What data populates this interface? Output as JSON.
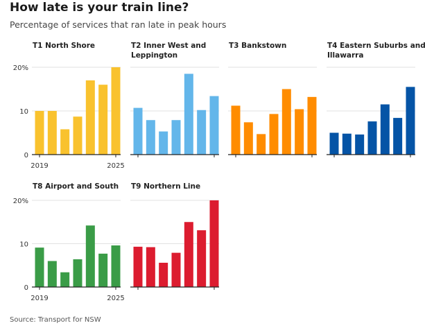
{
  "title": "How late is your train line?",
  "subtitle": "Percentage of services that ran late in peak hours",
  "source": "Source: Transport for NSW",
  "colors": {
    "T1": "#f9c22e",
    "T2": "#63b6ea",
    "T3": "#ff8c00",
    "T4": "#0554a6",
    "T8": "#3a9c47",
    "T9": "#dc1c2f",
    "grid": "#e2e2e2",
    "axis": "#222222"
  },
  "chart_data": [
    {
      "type": "bar",
      "title": "T1 North Shore",
      "color_key": "T1",
      "categories": [
        "2019",
        "2020",
        "2021",
        "2022",
        "2023",
        "2024",
        "2025"
      ],
      "values": [
        10,
        10,
        5.8,
        8.7,
        17,
        16,
        20
      ],
      "ylim": [
        0,
        20
      ],
      "yticks": [
        "0",
        "10",
        "20%"
      ],
      "xtick_labels": [
        "2019",
        "2025"
      ]
    },
    {
      "type": "bar",
      "title": "T2 Inner West and Leppington",
      "title_lines": [
        "T2 Inner West and",
        "Leppington"
      ],
      "color_key": "T2",
      "categories": [
        "2019",
        "2020",
        "2021",
        "2022",
        "2023",
        "2024",
        "2025"
      ],
      "values": [
        10.7,
        7.9,
        5.3,
        7.9,
        18.5,
        10.2,
        13.4
      ],
      "ylim": [
        0,
        20
      ],
      "yticks": [],
      "xtick_labels": []
    },
    {
      "type": "bar",
      "title": "T3 Bankstown",
      "color_key": "T3",
      "categories": [
        "2019",
        "2020",
        "2021",
        "2022",
        "2023",
        "2024",
        "2025"
      ],
      "values": [
        11.2,
        7.4,
        4.7,
        9.3,
        15,
        10.4,
        13.2
      ],
      "ylim": [
        0,
        20
      ],
      "yticks": [],
      "xtick_labels": []
    },
    {
      "type": "bar",
      "title": "T4 Eastern Suburbs and Illawarra",
      "title_lines": [
        "T4 Eastern Suburbs and",
        "Illawarra"
      ],
      "color_key": "T4",
      "categories": [
        "2019",
        "2020",
        "2021",
        "2022",
        "2023",
        "2024",
        "2025"
      ],
      "values": [
        5,
        4.8,
        4.6,
        7.6,
        11.5,
        8.4,
        15.5
      ],
      "ylim": [
        0,
        20
      ],
      "yticks": [],
      "xtick_labels": []
    },
    {
      "type": "bar",
      "title": "T8 Airport and South",
      "color_key": "T8",
      "categories": [
        "2019",
        "2020",
        "2021",
        "2022",
        "2023",
        "2024",
        "2025"
      ],
      "values": [
        9.1,
        6,
        3.4,
        6.4,
        14.2,
        7.7,
        9.6
      ],
      "ylim": [
        0,
        20
      ],
      "yticks": [
        "0",
        "10",
        "20%"
      ],
      "xtick_labels": [
        "2019",
        "2025"
      ]
    },
    {
      "type": "bar",
      "title": "T9 Northern Line",
      "color_key": "T9",
      "categories": [
        "2019",
        "2020",
        "2021",
        "2022",
        "2023",
        "2024",
        "2025"
      ],
      "values": [
        9.3,
        9.2,
        5.6,
        7.9,
        15,
        13.1,
        20
      ],
      "ylim": [
        0,
        20
      ],
      "yticks": [],
      "xtick_labels": []
    }
  ]
}
